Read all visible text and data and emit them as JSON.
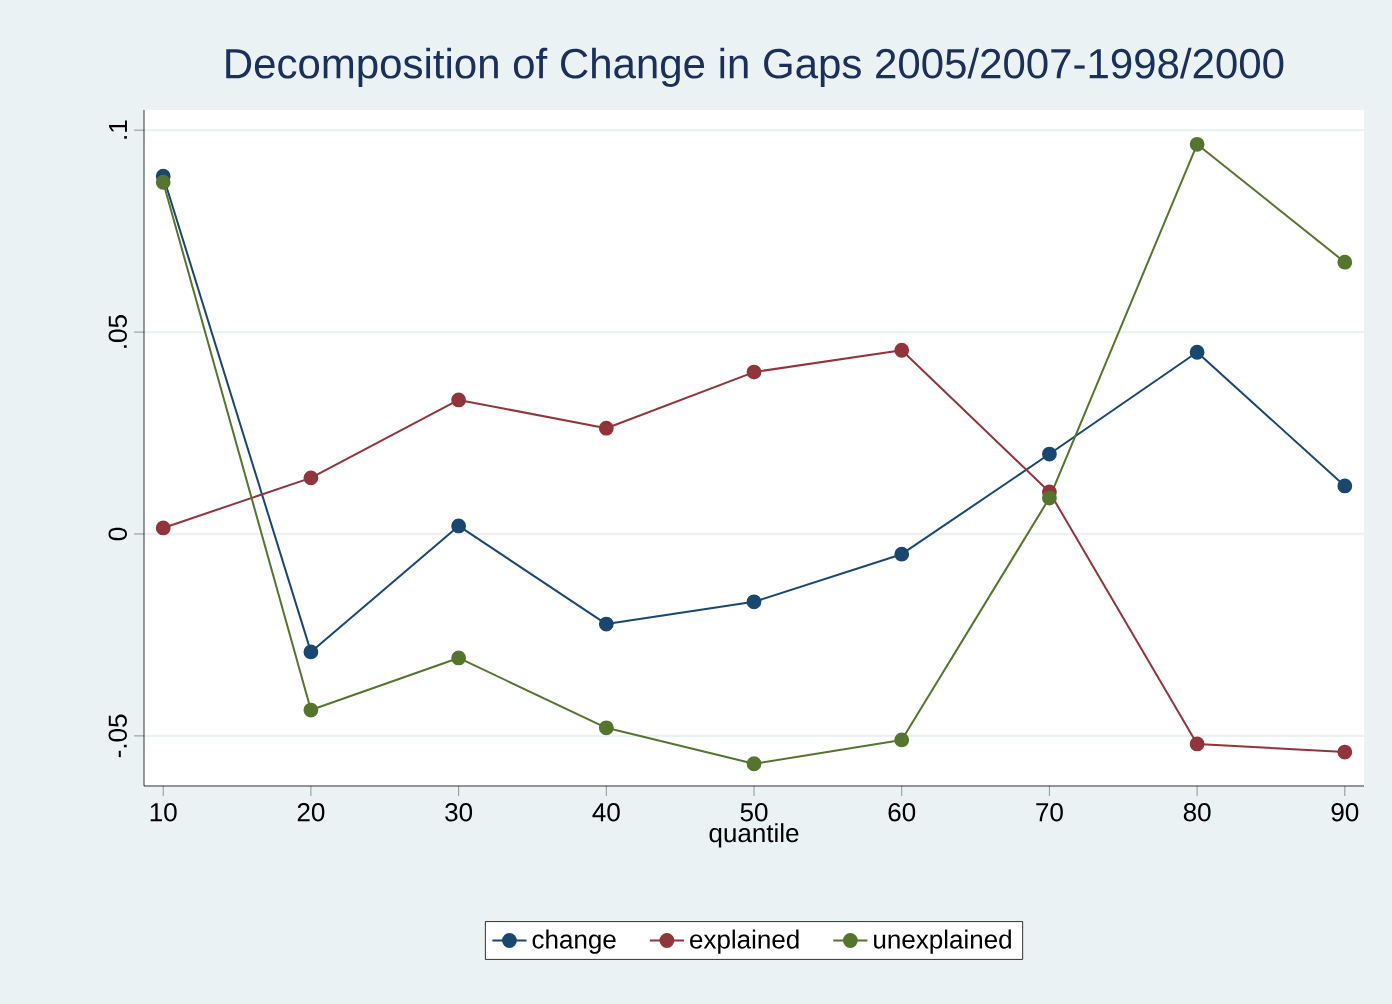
{
  "chart_data": {
    "type": "line",
    "title": "Decomposition of Change in Gaps 2005/2007-1998/2000",
    "xlabel": "quantile",
    "x": [
      10,
      20,
      30,
      40,
      50,
      60,
      70,
      80,
      90
    ],
    "series": [
      {
        "name": "change",
        "color": "#1a476f",
        "values": [
          0.0886,
          -0.0292,
          0.002,
          -0.0223,
          -0.0168,
          -0.005,
          0.0198,
          0.045,
          0.0119
        ]
      },
      {
        "name": "explained",
        "color": "#90353b",
        "values": [
          0.0015,
          0.0139,
          0.0332,
          0.0262,
          0.0401,
          0.0455,
          0.0104,
          -0.052,
          -0.054
        ]
      },
      {
        "name": "unexplained",
        "color": "#55752f",
        "values": [
          0.0871,
          -0.0436,
          -0.0307,
          -0.048,
          -0.0569,
          -0.051,
          0.0089,
          0.0965,
          0.0673
        ]
      }
    ],
    "xlim": [
      8.7,
      91.3
    ],
    "ylim": [
      -0.0624,
      0.105
    ],
    "xticks": [
      10,
      20,
      30,
      40,
      50,
      60,
      70,
      80,
      90
    ],
    "yticks": [
      {
        "value": -0.05,
        "label": "-.05"
      },
      0,
      {
        "value": 0.05,
        "label": ".05"
      },
      {
        "value": 0.1,
        "label": ".1"
      }
    ],
    "grid": "y",
    "legend": "bottom",
    "marker": "circle",
    "line_style": "solid"
  }
}
